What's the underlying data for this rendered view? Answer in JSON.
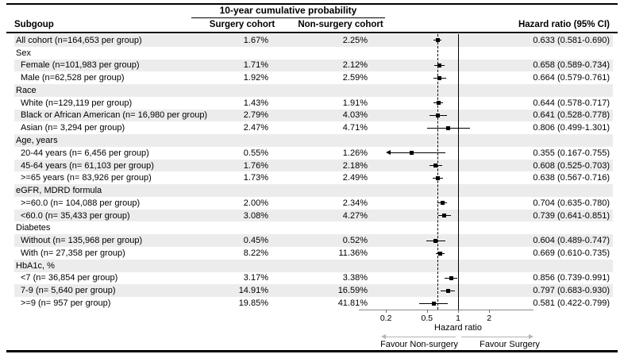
{
  "header": {
    "subgroup_col": "Subgoup",
    "spanner": "10-year cumulative probability",
    "surgery_col": "Surgery cohort",
    "nonsurgery_col": "Non-surgery cohort",
    "hr_col": "Hazard ratio (95% CI)"
  },
  "axis": {
    "xlabel": "Hazard ratio",
    "ticks": [
      {
        "label": "0.2",
        "value": 0.2
      },
      {
        "label": "0.5",
        "value": 0.5
      },
      {
        "label": "1",
        "value": 1
      },
      {
        "label": "2",
        "value": 2
      }
    ]
  },
  "footer": {
    "favour_left": "Favour Non-surgery",
    "favour_right": "Favour Surgery"
  },
  "colors": {
    "band": "#ececec",
    "marker": "#000000",
    "axis": "#8c8c8c",
    "arrow": "#b3b3b3"
  },
  "chart_data": {
    "type": "scatter",
    "subtype": "forest-plot",
    "title": "10-year cumulative probability",
    "xlabel": "Hazard ratio",
    "x_scale": "log",
    "x_ticks": [
      0.2,
      0.5,
      1,
      2
    ],
    "reference_line": 1.0,
    "overall_line": 0.633,
    "clip_min": 0.2,
    "rows": [
      {
        "kind": "data",
        "label": "All cohort (n=164,653 per group)",
        "indent": false,
        "surgery": "1.67%",
        "nonsurgery": "2.25%",
        "hr_label": "0.633 (0.581-0.690)",
        "hr": 0.633,
        "lo": 0.581,
        "hi": 0.69
      },
      {
        "kind": "category",
        "label": "Sex"
      },
      {
        "kind": "data",
        "label": "Female (n=101,983 per group)",
        "indent": true,
        "surgery": "1.71%",
        "nonsurgery": "2.12%",
        "hr_label": "0.658 (0.589-0.734)",
        "hr": 0.658,
        "lo": 0.589,
        "hi": 0.734
      },
      {
        "kind": "data",
        "label": "Male (n=62,528 per group)",
        "indent": true,
        "surgery": "1.92%",
        "nonsurgery": "2.59%",
        "hr_label": "0.664 (0.579-0.761)",
        "hr": 0.664,
        "lo": 0.579,
        "hi": 0.761
      },
      {
        "kind": "category",
        "label": "Race"
      },
      {
        "kind": "data",
        "label": "White (n=129,119 per group)",
        "indent": true,
        "surgery": "1.43%",
        "nonsurgery": "1.91%",
        "hr_label": "0.644 (0.578-0.717)",
        "hr": 0.644,
        "lo": 0.578,
        "hi": 0.717
      },
      {
        "kind": "data",
        "label": "Black or African American (n= 16,980 per group)",
        "indent": true,
        "surgery": "2.79%",
        "nonsurgery": "4.03%",
        "hr_label": "0.641 (0.528-0.778)",
        "hr": 0.641,
        "lo": 0.528,
        "hi": 0.778
      },
      {
        "kind": "data",
        "label": "Asian (n= 3,294 per group)",
        "indent": true,
        "surgery": "2.47%",
        "nonsurgery": "4.71%",
        "hr_label": "0.806 (0.499-1.301)",
        "hr": 0.806,
        "lo": 0.499,
        "hi": 1.301
      },
      {
        "kind": "category",
        "label": "Age, years"
      },
      {
        "kind": "data",
        "label": "20-44 years (n= 6,456 per group)",
        "indent": true,
        "surgery": "0.55%",
        "nonsurgery": "1.26%",
        "hr_label": "0.355 (0.167-0.755)",
        "hr": 0.355,
        "lo": 0.167,
        "hi": 0.755,
        "clip_low": true
      },
      {
        "kind": "data",
        "label": "45-64 years (n= 61,103 per group)",
        "indent": true,
        "surgery": "1.76%",
        "nonsurgery": "2.18%",
        "hr_label": "0.608 (0.525-0.703)",
        "hr": 0.608,
        "lo": 0.525,
        "hi": 0.703
      },
      {
        "kind": "data",
        "label": ">=65 years (n= 83,926 per group)",
        "indent": true,
        "surgery": "1.73%",
        "nonsurgery": "2.49%",
        "hr_label": "0.638 (0.567-0.716)",
        "hr": 0.638,
        "lo": 0.567,
        "hi": 0.716
      },
      {
        "kind": "category",
        "label": "eGFR, MDRD formula"
      },
      {
        "kind": "data",
        "label": ">=60.0 (n= 104,088 per group)",
        "indent": true,
        "surgery": "2.00%",
        "nonsurgery": "2.34%",
        "hr_label": "0.704 (0.635-0.780)",
        "hr": 0.704,
        "lo": 0.635,
        "hi": 0.78
      },
      {
        "kind": "data",
        "label": "<60.0 (n= 35,433 per group)",
        "indent": true,
        "surgery": "3.08%",
        "nonsurgery": "4.27%",
        "hr_label": "0.739 (0.641-0.851)",
        "hr": 0.739,
        "lo": 0.641,
        "hi": 0.851
      },
      {
        "kind": "category",
        "label": "Diabetes"
      },
      {
        "kind": "data",
        "label": "Without (n= 135,968 per group)",
        "indent": true,
        "surgery": "0.45%",
        "nonsurgery": "0.52%",
        "hr_label": "0.604 (0.489-0.747)",
        "hr": 0.604,
        "lo": 0.489,
        "hi": 0.747
      },
      {
        "kind": "data",
        "label": "With (n= 27,358 per group)",
        "indent": true,
        "surgery": "8.22%",
        "nonsurgery": "11.36%",
        "hr_label": "0.669 (0.610-0.735)",
        "hr": 0.669,
        "lo": 0.61,
        "hi": 0.735
      },
      {
        "kind": "category",
        "label": "HbA1c, %"
      },
      {
        "kind": "data",
        "label": "<7 (n= 36,854 per group)",
        "indent": true,
        "surgery": "3.17%",
        "nonsurgery": "3.38%",
        "hr_label": "0.856 (0.739-0.991)",
        "hr": 0.856,
        "lo": 0.739,
        "hi": 0.991
      },
      {
        "kind": "data",
        "label": "7-9 (n= 5,640 per group)",
        "indent": true,
        "surgery": "14.91%",
        "nonsurgery": "16.59%",
        "hr_label": "0.797 (0.683-0.930)",
        "hr": 0.797,
        "lo": 0.683,
        "hi": 0.93
      },
      {
        "kind": "data",
        "label": ">=9 (n= 957 per group)",
        "indent": true,
        "surgery": "19.85%",
        "nonsurgery": "41.81%",
        "hr_label": "0.581 (0.422-0.799)",
        "hr": 0.581,
        "lo": 0.422,
        "hi": 0.799
      }
    ]
  }
}
